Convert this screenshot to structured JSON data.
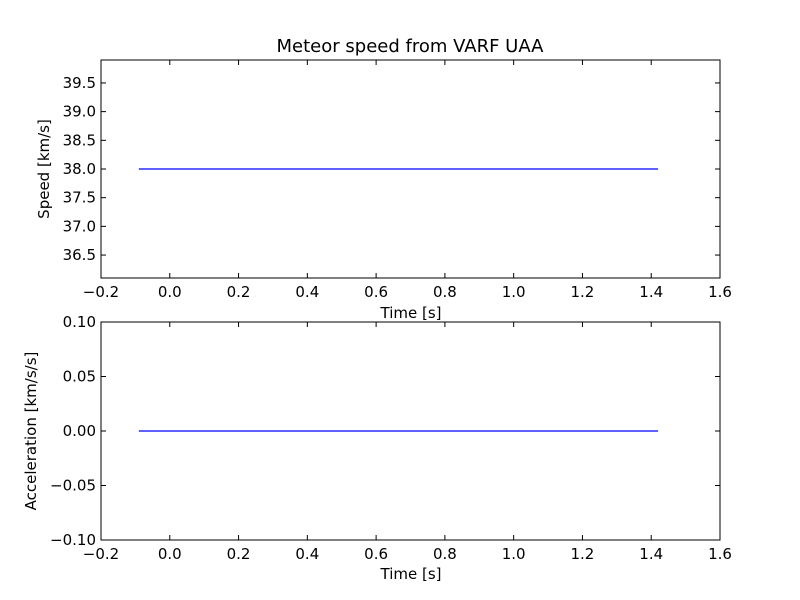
{
  "chart_data": [
    {
      "type": "line",
      "title": "Meteor speed from  VARF UAA",
      "xlabel": "Time [s]",
      "ylabel": "Speed [km/s]",
      "xlim": [
        -0.2,
        1.6
      ],
      "ylim": [
        36.1,
        39.9
      ],
      "xticks": [
        -0.2,
        0.0,
        0.2,
        0.4,
        0.6,
        0.8,
        1.0,
        1.2,
        1.4,
        1.6
      ],
      "xtick_labels": [
        "−0.2",
        "0.0",
        "0.2",
        "0.4",
        "0.6",
        "0.8",
        "1.0",
        "1.2",
        "1.4",
        "1.6"
      ],
      "yticks": [
        36.5,
        37.0,
        37.5,
        38.0,
        38.5,
        39.0,
        39.5
      ],
      "ytick_labels": [
        "36.5",
        "37.0",
        "37.5",
        "38.0",
        "38.5",
        "39.0",
        "39.5"
      ],
      "grid": false,
      "series": [
        {
          "color": "#0000ff",
          "x": [
            -0.09,
            1.42
          ],
          "y": [
            38.0,
            38.0
          ]
        }
      ]
    },
    {
      "type": "line",
      "title": "",
      "xlabel": "Time [s]",
      "ylabel": "Acceleration [km/s/s]",
      "xlim": [
        -0.2,
        1.6
      ],
      "ylim": [
        -0.1,
        0.1
      ],
      "xticks": [
        -0.2,
        0.0,
        0.2,
        0.4,
        0.6,
        0.8,
        1.0,
        1.2,
        1.4,
        1.6
      ],
      "xtick_labels": [
        "−0.2",
        "0.0",
        "0.2",
        "0.4",
        "0.6",
        "0.8",
        "1.0",
        "1.2",
        "1.4",
        "1.6"
      ],
      "yticks": [
        -0.1,
        -0.05,
        0.0,
        0.05,
        0.1
      ],
      "ytick_labels": [
        "−0.10",
        "−0.05",
        "0.00",
        "0.05",
        "0.10"
      ],
      "grid": false,
      "series": [
        {
          "color": "#0000ff",
          "x": [
            -0.09,
            1.42
          ],
          "y": [
            0.0,
            0.0
          ]
        }
      ]
    }
  ]
}
